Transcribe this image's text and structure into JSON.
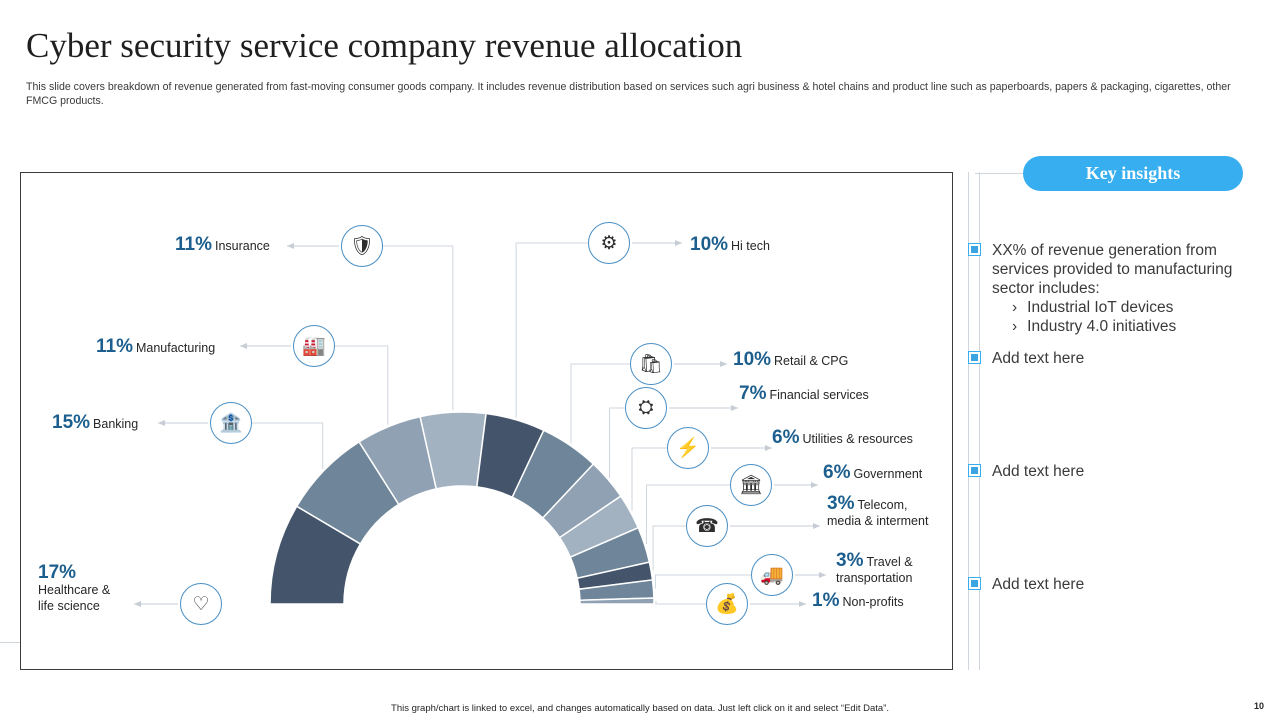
{
  "header": {
    "title": "Cyber security service company revenue allocation",
    "subtitle": "This slide covers breakdown of revenue generated from fast-moving consumer goods company. It includes revenue distribution based on services such agri business & hotel chains and product line such as paperboards, papers & packaging, cigarettes, other FMCG products."
  },
  "chart_data": {
    "type": "pie",
    "variant": "half-donut",
    "categories": [
      "Healthcare & life science",
      "Banking",
      "Manufacturing",
      "Insurance",
      "Hi tech",
      "Retail & CPG",
      "Financial services",
      "Utilities & resources",
      "Government",
      "Telecom, media & interment",
      "Travel & transportation",
      "Non-profits"
    ],
    "values": [
      17,
      15,
      11,
      11,
      10,
      10,
      7,
      6,
      6,
      3,
      3,
      1
    ],
    "labels": [
      {
        "pct": "17%",
        "name": "Healthcare &",
        "name2": "life science"
      },
      {
        "pct": "15%",
        "name": "Banking"
      },
      {
        "pct": "11%",
        "name": "Manufacturing"
      },
      {
        "pct": "11%",
        "name": "Insurance"
      },
      {
        "pct": "10%",
        "name": "Hi tech"
      },
      {
        "pct": "10%",
        "name": "Retail & CPG"
      },
      {
        "pct": "7%",
        "name": "Financial services"
      },
      {
        "pct": "6%",
        "name": "Utilities & resources"
      },
      {
        "pct": "6%",
        "name": "Government"
      },
      {
        "pct": "3%",
        "name": "Telecom,",
        "name2": "media & interment"
      },
      {
        "pct": "3%",
        "name": "Travel  &",
        "name2": "transportation"
      },
      {
        "pct": "1%",
        "name": "Non-profits"
      }
    ],
    "colors": [
      "#44546a",
      "#6f8599",
      "#8fa1b3",
      "#a2b2c1",
      "#44546a",
      "#6f8599",
      "#8fa1b3",
      "#a2b2c1",
      "#6f8599",
      "#44546a",
      "#6f8599",
      "#8fa1b3"
    ],
    "icons": [
      "heart-hand-icon",
      "bank-user-icon",
      "factory-icon",
      "insurance-icon",
      "gears-icon",
      "retail-icon",
      "network-icon",
      "utilities-icon",
      "government-icon",
      "telecom-icon",
      "travel-icon",
      "money-bag-icon"
    ],
    "icon_glyphs": [
      "♡",
      "🏦",
      "🏭",
      "🛡",
      "⚙",
      "🛍",
      "⛭",
      "⚡",
      "🏛",
      "☎",
      "🚚",
      "💰"
    ]
  },
  "insights": {
    "title": "Key insights",
    "items": [
      {
        "text": "XX% of revenue generation from services provided to manufacturing  sector includes:",
        "subs": [
          "Industrial  IoT  devices",
          "Industry  4.0 initiatives"
        ]
      },
      {
        "text": "Add text here"
      },
      {
        "text": "Add text here"
      },
      {
        "text": "Add text here"
      }
    ]
  },
  "footer": {
    "note": "This graph/chart is linked to excel, and changes automatically based on data. Just left click on it and select “Edit Data”.",
    "page": "10"
  }
}
